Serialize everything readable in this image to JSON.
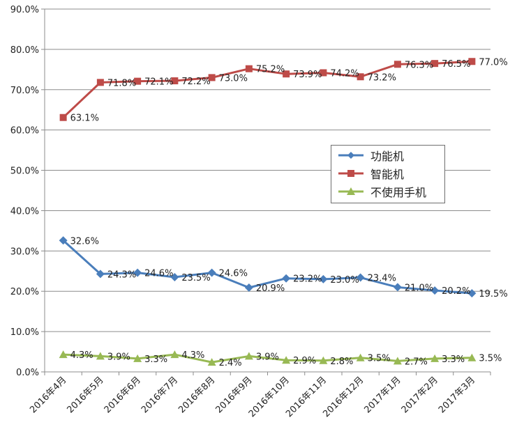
{
  "chart_data": {
    "type": "line",
    "categories": [
      "2016年4月",
      "2016年5月",
      "2016年6月",
      "2016年7月",
      "2016年8月",
      "2016年9月",
      "2016年10月",
      "2016年11月",
      "2016年12月",
      "2017年1月",
      "2017年2月",
      "2017年3月"
    ],
    "ylim": [
      0,
      90
    ],
    "yticks": [
      "0.0%",
      "10.0%",
      "20.0%",
      "30.0%",
      "40.0%",
      "50.0%",
      "60.0%",
      "70.0%",
      "80.0%",
      "90.0%"
    ],
    "grid": "horizontal",
    "legend_position": "right",
    "series": [
      {
        "name": "功能机",
        "color": "#4a7ebb",
        "marker": "diamond",
        "values": [
          32.6,
          24.3,
          24.6,
          23.5,
          24.6,
          20.9,
          23.2,
          23.0,
          23.4,
          21.0,
          20.2,
          19.5
        ],
        "labels": [
          "32.6%",
          "24.3%",
          "24.6%",
          "23.5%",
          "24.6%",
          "20.9%",
          "23.2%",
          "23.0%",
          "23.4%",
          "21.0%",
          "20.2%",
          "19.5%"
        ]
      },
      {
        "name": "智能机",
        "color": "#be4b48",
        "marker": "square",
        "values": [
          63.1,
          71.8,
          72.1,
          72.2,
          73.0,
          75.2,
          73.9,
          74.2,
          73.2,
          76.3,
          76.5,
          77.0
        ],
        "labels": [
          "63.1%",
          "71.8%",
          "72.1%",
          "72.2%",
          "73.0%",
          "75.2%",
          "73.9%",
          "74.2%",
          "73.2%",
          "76.3%",
          "76.5%",
          "77.0%"
        ]
      },
      {
        "name": "不使用手机",
        "color": "#98b954",
        "marker": "triangle",
        "values": [
          4.3,
          3.9,
          3.3,
          4.3,
          2.4,
          3.9,
          2.9,
          2.8,
          3.5,
          2.7,
          3.3,
          3.5
        ],
        "labels": [
          "4.3%",
          "3.9%",
          "3.3%",
          "4.3%",
          "2.4%",
          "3.9%",
          "2.9%",
          "2.8%",
          "3.5%",
          "2.7%",
          "3.3%",
          "3.5%"
        ]
      }
    ]
  }
}
